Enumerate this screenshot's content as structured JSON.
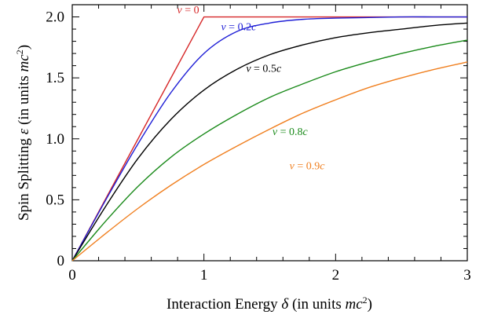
{
  "chart_data": {
    "type": "line",
    "xlabel": {
      "prefix": "Interaction Energy ",
      "symbol": "δ",
      "units_open": "  (in units ",
      "units_var": "mc",
      "units_sup": "2",
      "units_close": ")"
    },
    "ylabel": {
      "prefix": "Spin Splitting ",
      "symbol": "ε",
      "units_open": "  (in units ",
      "units_var": "mc",
      "units_sup": "2",
      "units_close": ")"
    },
    "xlim": [
      0,
      3
    ],
    "ylim": [
      0,
      2.1
    ],
    "xticks": [
      0,
      1,
      2,
      3
    ],
    "xtick_labels": [
      "0",
      "1",
      "2",
      "3"
    ],
    "yticks": [
      0,
      0.5,
      1.0,
      1.5,
      2.0
    ],
    "ytick_labels": [
      "0",
      "0.5",
      "1.0",
      "1.5",
      "2.0"
    ],
    "grid": false,
    "x": [
      0,
      0.25,
      0.5,
      0.75,
      1.0,
      1.25,
      1.5,
      1.75,
      2.0,
      2.25,
      2.5,
      2.75,
      3.0
    ],
    "series": [
      {
        "name": "v = 0",
        "label_parts": [
          "v",
          " = 0"
        ],
        "color": "#d62728",
        "values": [
          0,
          0.5,
          1.0,
          1.5,
          2.0,
          2.0,
          2.0,
          2.0,
          2.0,
          2.0,
          2.0,
          2.0,
          2.0
        ]
      },
      {
        "name": "v = 0.2c",
        "label_parts": [
          "v",
          " = 0.2",
          "c"
        ],
        "color": "#1f1fd6",
        "values": [
          0,
          0.49,
          0.96,
          1.38,
          1.7,
          1.88,
          1.95,
          1.98,
          1.99,
          1.995,
          2.0,
          2.0,
          2.0
        ]
      },
      {
        "name": "v = 0.5c",
        "label_parts": [
          "v",
          " = 0.5",
          "c"
        ],
        "color": "#000000",
        "values": [
          0,
          0.44,
          0.84,
          1.16,
          1.4,
          1.57,
          1.69,
          1.77,
          1.83,
          1.87,
          1.9,
          1.93,
          1.95
        ]
      },
      {
        "name": "v = 0.8c",
        "label_parts": [
          "v",
          " = 0.8",
          "c"
        ],
        "color": "#1a8a1a",
        "values": [
          0,
          0.32,
          0.61,
          0.85,
          1.04,
          1.2,
          1.34,
          1.45,
          1.55,
          1.63,
          1.7,
          1.76,
          1.81
        ]
      },
      {
        "name": "v = 0.9c",
        "label_parts": [
          "v",
          " = 0.9",
          "c"
        ],
        "color": "#f07f1f",
        "values": [
          0,
          0.22,
          0.43,
          0.62,
          0.79,
          0.94,
          1.08,
          1.21,
          1.32,
          1.42,
          1.5,
          1.57,
          1.63
        ]
      }
    ]
  }
}
